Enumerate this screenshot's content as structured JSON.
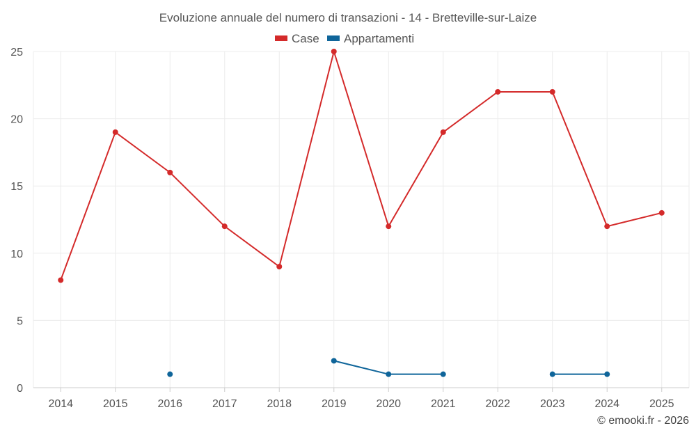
{
  "chart_data": {
    "type": "line",
    "title": "Evoluzione annuale del numero di transazioni - 14 - Bretteville-sur-Laize",
    "categories": [
      "2014",
      "2015",
      "2016",
      "2017",
      "2018",
      "2019",
      "2020",
      "2021",
      "2022",
      "2023",
      "2024",
      "2025"
    ],
    "series": [
      {
        "name": "Case",
        "color": "#d42a2a",
        "values": [
          8,
          19,
          16,
          12,
          9,
          25,
          12,
          19,
          22,
          22,
          12,
          13
        ]
      },
      {
        "name": "Appartamenti",
        "color": "#0f659a",
        "values": [
          null,
          null,
          1,
          null,
          null,
          2,
          1,
          1,
          null,
          1,
          1,
          null
        ]
      }
    ],
    "ylim": [
      0,
      25
    ],
    "yticks": [
      "0",
      "5",
      "10",
      "15",
      "20",
      "25"
    ],
    "legend": "top-center",
    "grid": true,
    "credit": "© emooki.fr - 2026"
  }
}
